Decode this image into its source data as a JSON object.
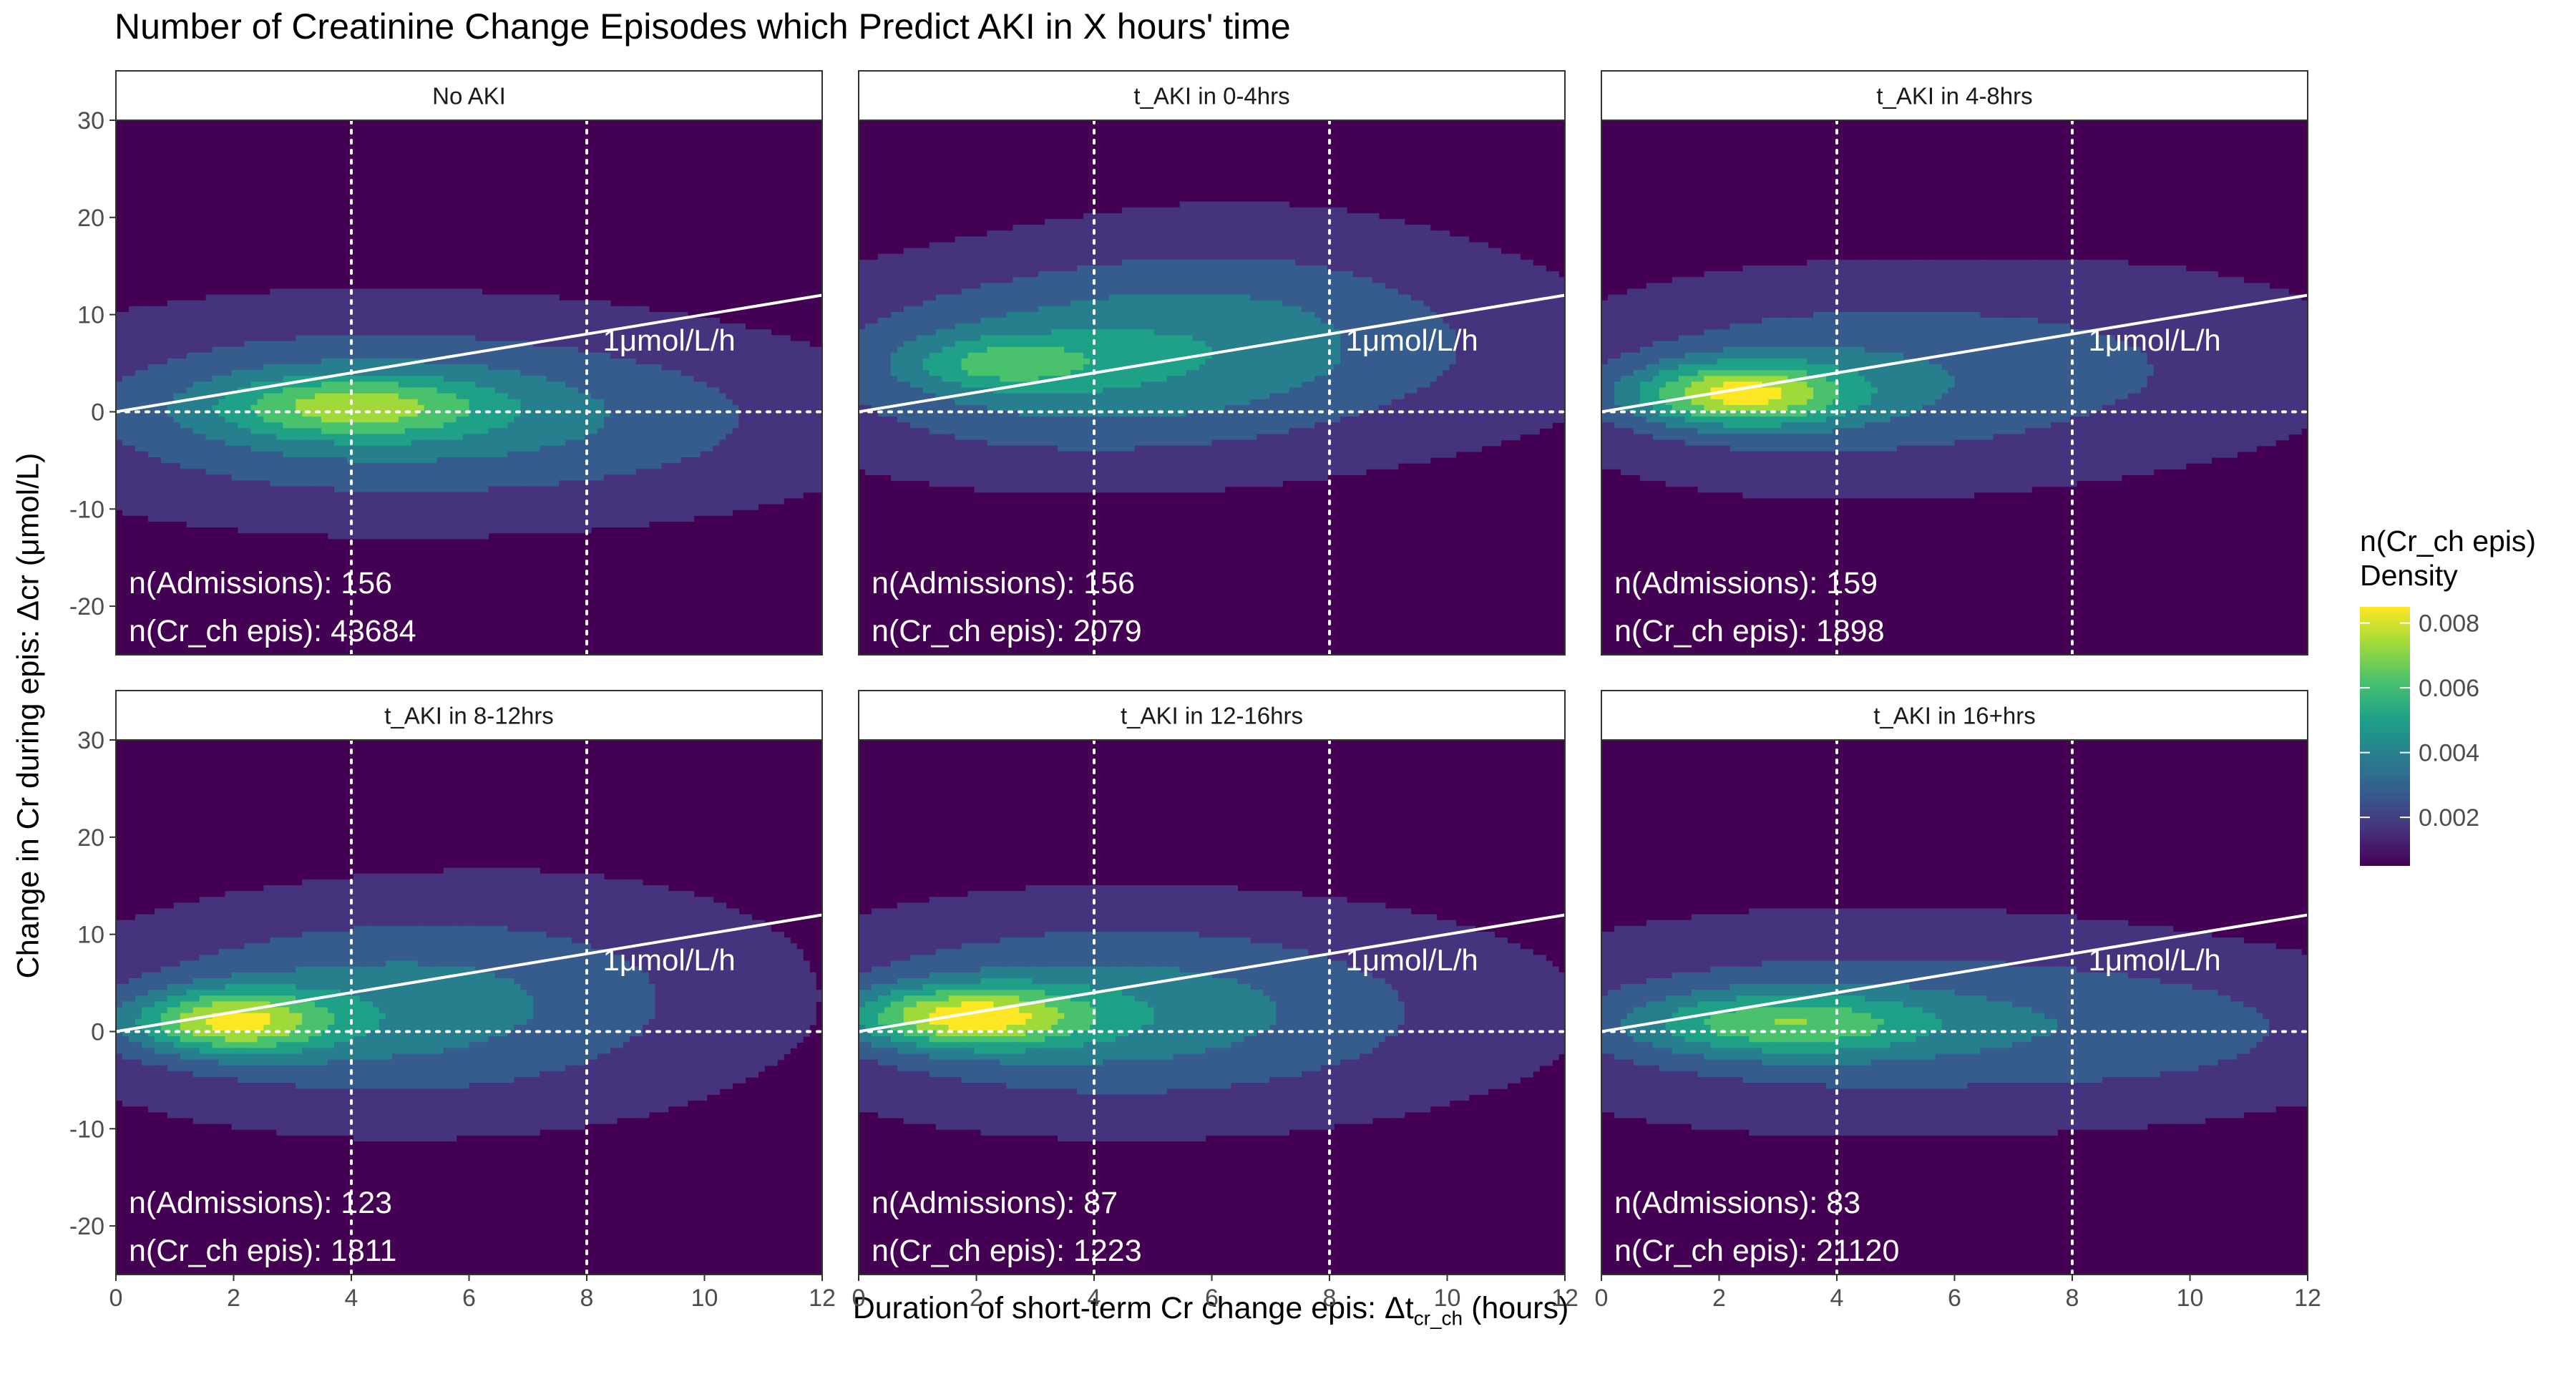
{
  "chart_data": {
    "type": "heatmap",
    "subtype": "faceted 2D density contour plot",
    "title": "Number of Creatinine Change Episodes which Predict AKI in X hours' time",
    "xlabel": {
      "prefix": "Duration of short-term Cr change epis: Δt",
      "subscript": "cr_ch",
      "suffix": " (hours)"
    },
    "ylabel": "Change in Cr during epis: Δcr (μmol/L)",
    "xlim": [
      0,
      12
    ],
    "ylim": [
      -25,
      30
    ],
    "x_ticks": [
      0,
      2,
      4,
      6,
      8,
      10,
      12
    ],
    "y_ticks": [
      -20,
      -10,
      0,
      10,
      20,
      30
    ],
    "reference_lines": {
      "vertical_dotted_x": [
        4,
        8
      ],
      "horizontal_dotted_y": [
        0
      ]
    },
    "rate_line": {
      "slope": 1,
      "intercept": 0,
      "label": "1μmol/L/h"
    },
    "legend": {
      "title_line1": "n(Cr_ch epis)",
      "title_line2": "Density",
      "palette": "viridis",
      "colors": [
        "#440154",
        "#46337e",
        "#365c8d",
        "#277f8e",
        "#1fa187",
        "#4ac16d",
        "#9fda3a",
        "#fde725"
      ],
      "ticks": [
        0.002,
        0.004,
        0.006,
        0.008
      ],
      "tick_labels": [
        "0.002",
        "0.004",
        "0.006",
        "0.008"
      ],
      "range": [
        0.0005,
        0.0085
      ],
      "placement": "right"
    },
    "grid": false,
    "facets": [
      {
        "label": "No AKI",
        "admissions_label": "n(Admissions): 156",
        "episodes_label": "n(Cr_ch epis): 43684",
        "peak": {
          "x": 4.0,
          "y": 0.5,
          "density": 0.0068
        },
        "blobs": [
          {
            "x": 4.0,
            "y": 0.0,
            "sx": 3.6,
            "sy": 6.5,
            "w": 0.0032
          },
          {
            "x": 4.0,
            "y": 0.5,
            "sx": 1.6,
            "sy": 2.2,
            "w": 0.0036
          },
          {
            "x": 9.0,
            "y": -1.0,
            "sx": 3.0,
            "sy": 6.0,
            "w": 0.0012
          }
        ]
      },
      {
        "label": "t_AKI in  0-4hrs",
        "admissions_label": "n(Admissions): 156",
        "episodes_label": "n(Cr_ch epis): 2079",
        "peak": {
          "x": 2.5,
          "y": 5.0,
          "density": 0.0058
        },
        "blobs": [
          {
            "x": 3.2,
            "y": 4.5,
            "sx": 3.0,
            "sy": 6.5,
            "w": 0.0032
          },
          {
            "x": 6.5,
            "y": 9.0,
            "sx": 2.6,
            "sy": 7.5,
            "w": 0.0016
          },
          {
            "x": 2.4,
            "y": 5.0,
            "sx": 1.1,
            "sy": 1.8,
            "w": 0.0024
          },
          {
            "x": 9.5,
            "y": 6.0,
            "sx": 3.0,
            "sy": 7.0,
            "w": 0.0009
          }
        ]
      },
      {
        "label": "t_AKI in  4-8hrs",
        "admissions_label": "n(Admissions): 159",
        "episodes_label": "n(Cr_ch epis): 1898",
        "peak": {
          "x": 2.2,
          "y": 1.5,
          "density": 0.0085
        },
        "blobs": [
          {
            "x": 2.3,
            "y": 1.8,
            "sx": 1.3,
            "sy": 2.3,
            "w": 0.0056
          },
          {
            "x": 3.8,
            "y": 3.0,
            "sx": 3.0,
            "sy": 6.5,
            "w": 0.0026
          },
          {
            "x": 9.0,
            "y": 5.0,
            "sx": 3.0,
            "sy": 7.0,
            "w": 0.0012
          }
        ]
      },
      {
        "label": "t_AKI in  8-12hrs",
        "admissions_label": "n(Admissions): 123",
        "episodes_label": "n(Cr_ch epis): 1811",
        "peak": {
          "x": 2.0,
          "y": 1.0,
          "density": 0.0085
        },
        "blobs": [
          {
            "x": 1.9,
            "y": 1.0,
            "sx": 1.2,
            "sy": 2.3,
            "w": 0.0054
          },
          {
            "x": 3.8,
            "y": 2.0,
            "sx": 3.0,
            "sy": 6.5,
            "w": 0.0028
          },
          {
            "x": 7.5,
            "y": 4.0,
            "sx": 3.0,
            "sy": 8.0,
            "w": 0.0013
          }
        ]
      },
      {
        "label": "t_AKI in 12-16hrs",
        "admissions_label": "n(Admissions): 87",
        "episodes_label": "n(Cr_ch epis): 1223",
        "peak": {
          "x": 1.8,
          "y": 1.5,
          "density": 0.0085
        },
        "blobs": [
          {
            "x": 1.8,
            "y": 1.5,
            "sx": 1.4,
            "sy": 2.2,
            "w": 0.0055
          },
          {
            "x": 3.6,
            "y": 2.0,
            "sx": 3.2,
            "sy": 6.5,
            "w": 0.0029
          },
          {
            "x": 7.5,
            "y": 2.0,
            "sx": 3.4,
            "sy": 7.0,
            "w": 0.0012
          }
        ]
      },
      {
        "label": "t_AKI in 16+hrs",
        "admissions_label": "n(Admissions): 83",
        "episodes_label": "n(Cr_ch epis): 21120",
        "peak": {
          "x": 3.0,
          "y": 1.0,
          "density": 0.0072
        },
        "blobs": [
          {
            "x": 3.0,
            "y": 0.8,
            "sx": 1.8,
            "sy": 2.3,
            "w": 0.0038
          },
          {
            "x": 4.5,
            "y": 1.0,
            "sx": 4.0,
            "sy": 6.5,
            "w": 0.0026
          },
          {
            "x": 10.0,
            "y": 0.0,
            "sx": 2.5,
            "sy": 5.0,
            "w": 0.0012
          }
        ]
      }
    ]
  }
}
